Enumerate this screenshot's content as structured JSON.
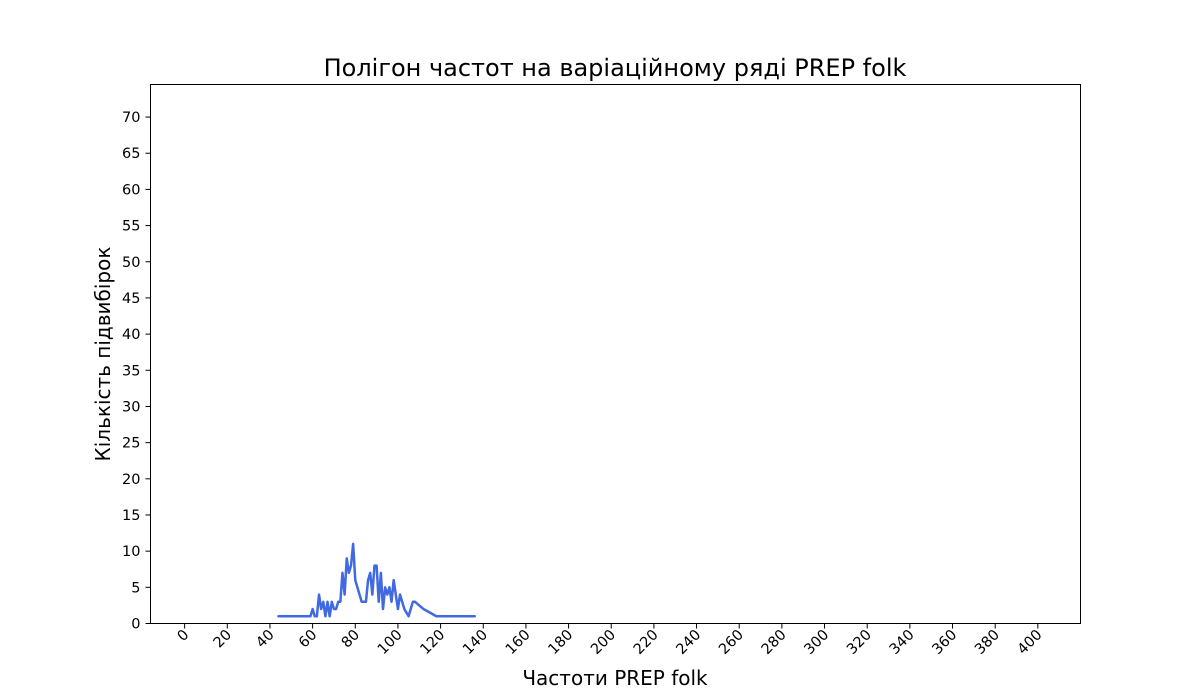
{
  "chart_data": {
    "type": "line",
    "title": "Полігон частот на варіаційному ряді PREP folk",
    "xlabel": "Частоти PREP folk",
    "ylabel": "Кількість підвибірок",
    "xlim": [
      -16,
      420
    ],
    "ylim": [
      0,
      74.5
    ],
    "xticks": [
      0,
      20,
      40,
      60,
      80,
      100,
      120,
      140,
      160,
      180,
      200,
      220,
      240,
      260,
      280,
      300,
      320,
      340,
      360,
      380,
      400
    ],
    "yticks": [
      0,
      5,
      10,
      15,
      20,
      25,
      30,
      35,
      40,
      45,
      50,
      55,
      60,
      65,
      70
    ],
    "xtick_rotation": 45,
    "grid": false,
    "legend": false,
    "color": "#4169E1",
    "series": [
      {
        "x": [
          44,
          59,
          60,
          61,
          62,
          63,
          64,
          65,
          66,
          67,
          68,
          69,
          70,
          71,
          72,
          73,
          74,
          75,
          76,
          77,
          78,
          79,
          80,
          81,
          82,
          83,
          84,
          85,
          86,
          87,
          88,
          89,
          90,
          91,
          92,
          93,
          94,
          95,
          96,
          97,
          98,
          99,
          100,
          101,
          102,
          103,
          104,
          105,
          106,
          107,
          108,
          110,
          112,
          115,
          118,
          121,
          136
        ],
        "y": [
          1,
          1,
          2,
          1,
          1,
          4,
          2,
          3,
          1,
          3,
          1,
          3,
          2,
          2,
          3,
          3,
          7,
          4,
          9,
          7,
          8,
          11,
          6,
          5,
          4,
          3,
          3,
          3,
          6,
          7,
          4,
          8,
          8,
          3,
          7,
          2,
          5,
          4,
          5,
          3,
          6,
          4,
          2,
          4,
          3,
          2,
          1.5,
          1,
          2,
          3,
          3,
          2.5,
          2,
          1.5,
          1,
          1,
          1
        ]
      }
    ]
  }
}
